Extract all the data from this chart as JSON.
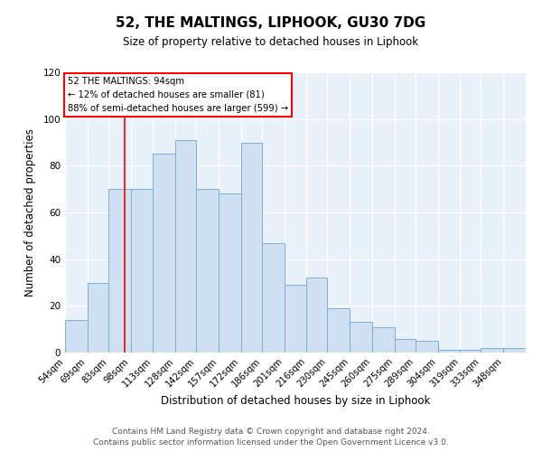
{
  "title": "52, THE MALTINGS, LIPHOOK, GU30 7DG",
  "subtitle": "Size of property relative to detached houses in Liphook",
  "xlabel": "Distribution of detached houses by size in Liphook",
  "ylabel": "Number of detached properties",
  "bar_color": "#cfe0f3",
  "bar_edge_color": "#7aafd4",
  "bg_color": "#e8f0fa",
  "grid_color": "#ffffff",
  "categories": [
    "54sqm",
    "69sqm",
    "83sqm",
    "98sqm",
    "113sqm",
    "128sqm",
    "142sqm",
    "157sqm",
    "172sqm",
    "186sqm",
    "201sqm",
    "216sqm",
    "230sqm",
    "245sqm",
    "260sqm",
    "275sqm",
    "289sqm",
    "304sqm",
    "319sqm",
    "333sqm",
    "348sqm"
  ],
  "bin_edges": [
    54,
    69,
    83,
    98,
    113,
    128,
    142,
    157,
    172,
    186,
    201,
    216,
    230,
    245,
    260,
    275,
    289,
    304,
    319,
    333,
    348,
    363
  ],
  "values": [
    14,
    30,
    70,
    70,
    85,
    91,
    70,
    68,
    90,
    47,
    29,
    32,
    19,
    13,
    11,
    6,
    5,
    1,
    1,
    2,
    2
  ],
  "ylim": [
    0,
    120
  ],
  "yticks": [
    0,
    20,
    40,
    60,
    80,
    100,
    120
  ],
  "red_line_x": 94,
  "ann_title": "52 THE MALTINGS: 94sqm",
  "ann_line1": "← 12% of detached houses are smaller (81)",
  "ann_line2": "88% of semi-detached houses are larger (599) →",
  "footer_line1": "Contains HM Land Registry data © Crown copyright and database right 2024.",
  "footer_line2": "Contains public sector information licensed under the Open Government Licence v3.0."
}
